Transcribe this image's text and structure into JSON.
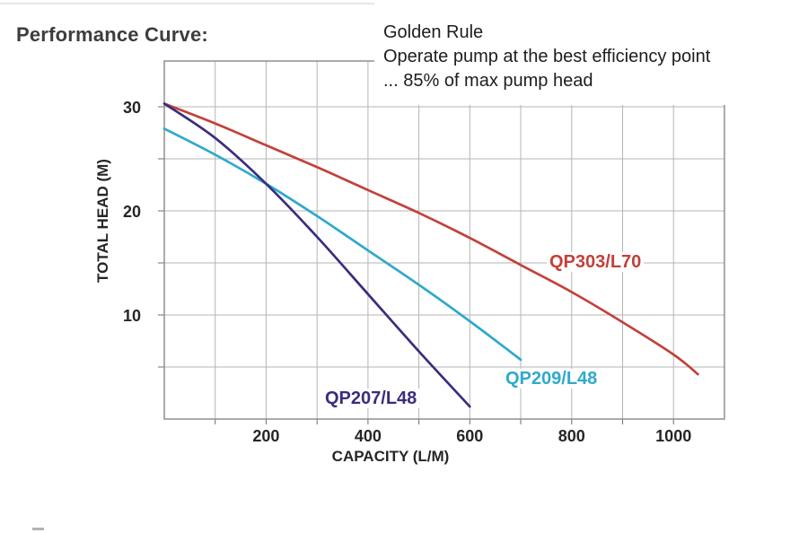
{
  "page_title": "Performance Curve:",
  "annotation": {
    "line1": "Golden Rule",
    "line2": "Operate pump at the best efficiency point",
    "line3": "... 85% of max pump head"
  },
  "colors": {
    "title_text": "#3d3d3d",
    "annotation_text": "#1d1d1d",
    "tick_text": "#262626",
    "grid": "#b5b5b5",
    "border": "#8f8f8f",
    "tick_mark": "#6f6f6f",
    "red": "#c2413a",
    "cyan": "#2fa9cd",
    "purple": "#392d7d"
  },
  "chart_data": {
    "type": "line",
    "title": "Performance Curve",
    "xlabel": "CAPACITY (L/M)",
    "ylabel": "TOTAL HEAD (M)",
    "xlim": [
      0,
      1100
    ],
    "ylim": [
      0,
      34.4
    ],
    "x_ticks": [
      200,
      400,
      600,
      800,
      1000
    ],
    "y_ticks": [
      10,
      20,
      30
    ],
    "grid": "on",
    "grid_step": {
      "x": 100,
      "y": 5
    },
    "legend_position": "labels-on-chart",
    "series": [
      {
        "name": "QP303/L70",
        "color": "#c2413a",
        "points": [
          [
            0,
            30.3
          ],
          [
            100,
            28.4
          ],
          [
            200,
            26.3
          ],
          [
            300,
            24.2
          ],
          [
            400,
            22.0
          ],
          [
            500,
            19.8
          ],
          [
            600,
            17.4
          ],
          [
            700,
            14.8
          ],
          [
            800,
            12.2
          ],
          [
            900,
            9.3
          ],
          [
            1000,
            6.2
          ],
          [
            1048,
            4.3
          ]
        ]
      },
      {
        "name": "QP209/L48",
        "color": "#2fa9cd",
        "points": [
          [
            0,
            27.9
          ],
          [
            100,
            25.4
          ],
          [
            200,
            22.6
          ],
          [
            300,
            19.5
          ],
          [
            400,
            16.2
          ],
          [
            500,
            12.9
          ],
          [
            600,
            9.4
          ],
          [
            700,
            5.7
          ]
        ]
      },
      {
        "name": "QP207/L48",
        "color": "#392d7d",
        "points": [
          [
            0,
            30.3
          ],
          [
            100,
            27.0
          ],
          [
            200,
            22.6
          ],
          [
            300,
            17.5
          ],
          [
            400,
            12.0
          ],
          [
            500,
            6.5
          ],
          [
            600,
            1.2
          ]
        ]
      }
    ]
  }
}
